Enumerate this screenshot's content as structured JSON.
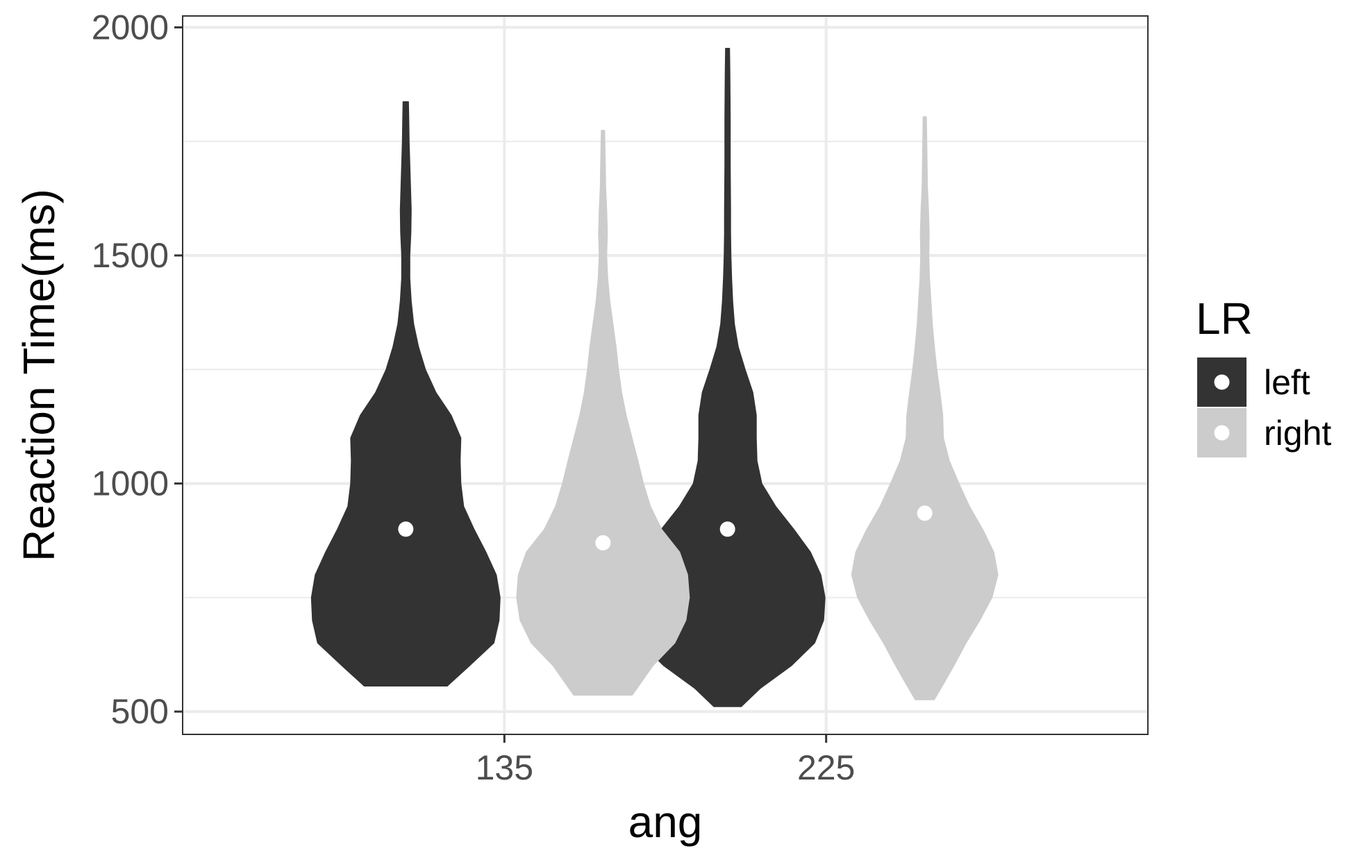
{
  "chart_data": {
    "type": "violin",
    "xlabel": "ang",
    "ylabel": "Reaction Time(ms)",
    "categories": [
      "135",
      "225"
    ],
    "ylim": [
      450,
      2025
    ],
    "y_ticks": [
      500,
      1000,
      1500,
      2000
    ],
    "grid": true,
    "legend": {
      "title": "LR",
      "placement": "right",
      "entries": [
        "left",
        "right"
      ]
    },
    "colors": {
      "left": "#333333",
      "right": "#cccccc",
      "median_point": "#ffffff"
    },
    "series": [
      {
        "name": "left",
        "violins": [
          {
            "category": "135",
            "median": 900,
            "min": 555,
            "max": 1838,
            "profile": [
              [
                555,
                120
              ],
              [
                600,
                185
              ],
              [
                650,
                255
              ],
              [
                700,
                270
              ],
              [
                750,
                273
              ],
              [
                800,
                262
              ],
              [
                850,
                232
              ],
              [
                900,
                198
              ],
              [
                950,
                168
              ],
              [
                1000,
                160
              ],
              [
                1050,
                158
              ],
              [
                1100,
                160
              ],
              [
                1150,
                132
              ],
              [
                1200,
                88
              ],
              [
                1250,
                58
              ],
              [
                1300,
                38
              ],
              [
                1350,
                24
              ],
              [
                1400,
                17
              ],
              [
                1450,
                13
              ],
              [
                1500,
                13
              ],
              [
                1550,
                16
              ],
              [
                1600,
                17
              ],
              [
                1650,
                15
              ],
              [
                1700,
                13
              ],
              [
                1750,
                11
              ],
              [
                1800,
                10
              ],
              [
                1838,
                9
              ]
            ]
          },
          {
            "category": "225",
            "median": 900,
            "min": 510,
            "max": 1955,
            "profile": [
              [
                510,
                40
              ],
              [
                550,
                95
              ],
              [
                600,
                185
              ],
              [
                650,
                252
              ],
              [
                700,
                278
              ],
              [
                750,
                282
              ],
              [
                800,
                270
              ],
              [
                850,
                240
              ],
              [
                900,
                192
              ],
              [
                950,
                140
              ],
              [
                1000,
                100
              ],
              [
                1050,
                86
              ],
              [
                1100,
                84
              ],
              [
                1150,
                84
              ],
              [
                1200,
                74
              ],
              [
                1250,
                52
              ],
              [
                1300,
                32
              ],
              [
                1350,
                21
              ],
              [
                1400,
                16
              ],
              [
                1450,
                13
              ],
              [
                1500,
                11
              ],
              [
                1550,
                10
              ],
              [
                1600,
                10
              ],
              [
                1700,
                9
              ],
              [
                1800,
                9
              ],
              [
                1900,
                8
              ],
              [
                1955,
                7
              ]
            ]
          }
        ]
      },
      {
        "name": "right",
        "violins": [
          {
            "category": "135",
            "median": 870,
            "min": 535,
            "max": 1775,
            "profile": [
              [
                535,
                85
              ],
              [
                600,
                145
              ],
              [
                650,
                208
              ],
              [
                700,
                240
              ],
              [
                750,
                250
              ],
              [
                800,
                245
              ],
              [
                850,
                222
              ],
              [
                900,
                170
              ],
              [
                950,
                138
              ],
              [
                1000,
                118
              ],
              [
                1050,
                102
              ],
              [
                1100,
                85
              ],
              [
                1150,
                68
              ],
              [
                1200,
                55
              ],
              [
                1250,
                46
              ],
              [
                1300,
                39
              ],
              [
                1350,
                30
              ],
              [
                1400,
                21
              ],
              [
                1450,
                15
              ],
              [
                1500,
                12
              ],
              [
                1550,
                14
              ],
              [
                1600,
                12
              ],
              [
                1650,
                9
              ],
              [
                1700,
                8
              ],
              [
                1775,
                6
              ]
            ]
          },
          {
            "category": "225",
            "median": 935,
            "min": 525,
            "max": 1805,
            "profile": [
              [
                525,
                28
              ],
              [
                560,
                55
              ],
              [
                600,
                85
              ],
              [
                650,
                120
              ],
              [
                700,
                160
              ],
              [
                750,
                195
              ],
              [
                800,
                212
              ],
              [
                850,
                200
              ],
              [
                900,
                168
              ],
              [
                950,
                130
              ],
              [
                1000,
                100
              ],
              [
                1050,
                72
              ],
              [
                1100,
                55
              ],
              [
                1150,
                53
              ],
              [
                1200,
                45
              ],
              [
                1250,
                36
              ],
              [
                1300,
                29
              ],
              [
                1350,
                23
              ],
              [
                1400,
                19
              ],
              [
                1450,
                15
              ],
              [
                1500,
                13
              ],
              [
                1550,
                14
              ],
              [
                1600,
                12
              ],
              [
                1650,
                9
              ],
              [
                1700,
                8
              ],
              [
                1805,
                6
              ]
            ]
          }
        ]
      }
    ]
  }
}
